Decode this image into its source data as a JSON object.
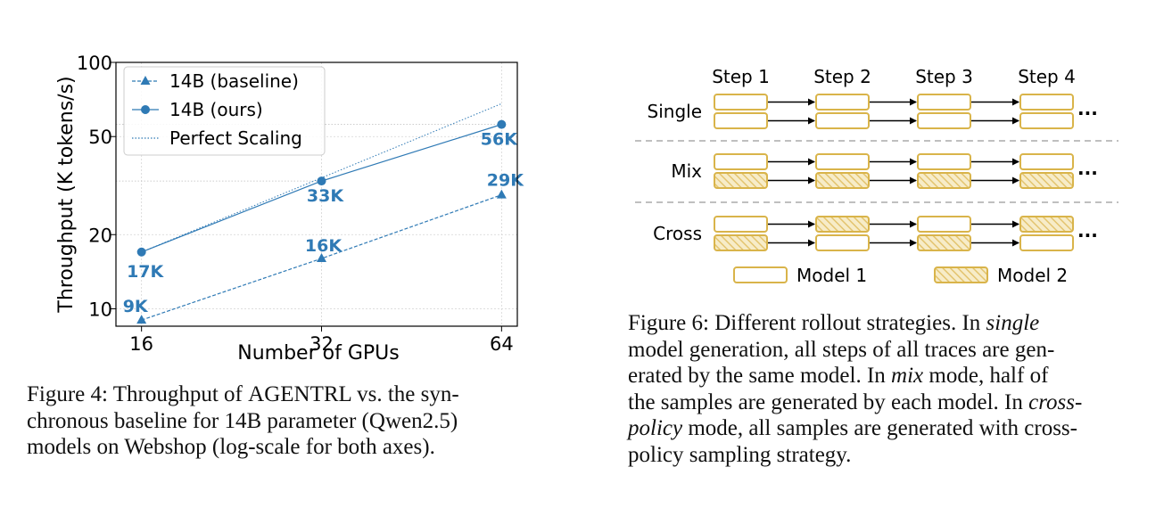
{
  "chart_data": {
    "type": "line",
    "xlabel": "Number of GPUs",
    "ylabel": "Throughput (K tokens/s)",
    "xscale": "log",
    "yscale": "log",
    "xlim": [
      14.5,
      68
    ],
    "ylim": [
      8.5,
      100
    ],
    "x_ticks": [
      16,
      32,
      64
    ],
    "x_tick_labels": [
      "16",
      "32",
      "64"
    ],
    "y_ticks": [
      10,
      20,
      50,
      100
    ],
    "y_tick_labels": [
      "10",
      "20",
      "50",
      "100"
    ],
    "grid": true,
    "legend_position": "top-left",
    "x": [
      16,
      32,
      64
    ],
    "series": [
      {
        "name": "14B (baseline)",
        "values": [
          9,
          16,
          29
        ],
        "marker": "triangle",
        "line_style": "dashed",
        "color": "#2f7ab5",
        "point_labels": [
          "9K",
          "16K",
          "29K"
        ]
      },
      {
        "name": "14B (ours)",
        "values": [
          17,
          33,
          56
        ],
        "marker": "circle",
        "line_style": "solid",
        "color": "#2f7ab5",
        "point_labels": [
          "17K",
          "33K",
          "56K"
        ]
      },
      {
        "name": "Perfect Scaling",
        "values": [
          17,
          34,
          68
        ],
        "marker": "none",
        "line_style": "dotted",
        "color": "#2f7ab5"
      }
    ]
  },
  "caption_left": {
    "lines": [
      [
        "Figure 4: Throughput of ",
        "AGENT",
        "RL vs. the syn-"
      ],
      "chronous baseline for 14B parameter (Qwen2.5)",
      "models on Webshop (log-scale for both axes)."
    ]
  },
  "diagram": {
    "steps": [
      "Step 1",
      "Step 2",
      "Step 3",
      "Step 4"
    ],
    "rows": [
      {
        "label": "Single",
        "top": [
          "model1",
          "model1",
          "model1",
          "model1"
        ],
        "bottom": [
          "model1",
          "model1",
          "model1",
          "model1"
        ]
      },
      {
        "label": "Mix",
        "top": [
          "model1",
          "model1",
          "model1",
          "model1"
        ],
        "bottom": [
          "model2",
          "model2",
          "model2",
          "model2"
        ]
      },
      {
        "label": "Cross",
        "top": [
          "model1",
          "model2",
          "model1",
          "model2"
        ],
        "bottom": [
          "model2",
          "model1",
          "model2",
          "model1"
        ]
      }
    ],
    "ellipsis": "...",
    "legend": [
      {
        "key": "model1",
        "label": "Model 1"
      },
      {
        "key": "model2",
        "label": "Model 2"
      }
    ],
    "colors": {
      "box_border": "#d9b44a",
      "hatch": "#e8cc7c",
      "separator": "#aaaaaa",
      "arrow": "#000000"
    }
  },
  "caption_right": {
    "lines": [
      [
        "Figure 6: Different rollout strategies. In ",
        "single"
      ],
      "model generation, all steps of all traces are gen-",
      [
        "erated by the same model. In ",
        "mix",
        " mode, half of"
      ],
      [
        "the samples are generated by each model. In ",
        "cross-"
      ],
      [
        "policy",
        " mode, all samples are generated with cross-"
      ],
      "policy sampling strategy."
    ]
  }
}
